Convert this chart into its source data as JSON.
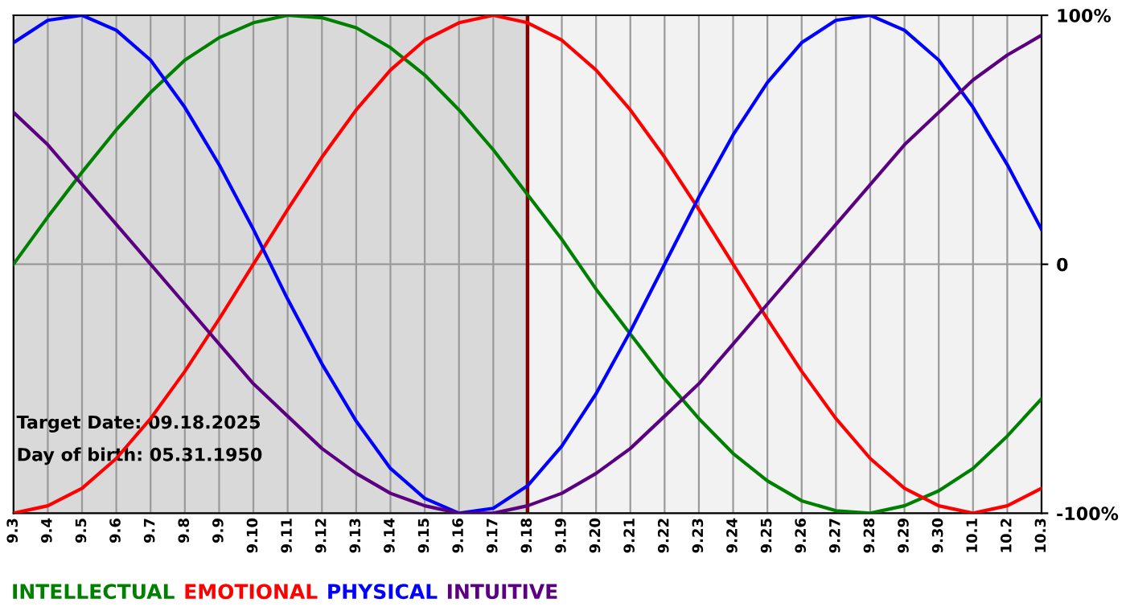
{
  "chart_data": {
    "type": "line",
    "categories": [
      "9.3",
      "9.4",
      "9.5",
      "9.6",
      "9.7",
      "9.8",
      "9.9",
      "9.10",
      "9.11",
      "9.12",
      "9.13",
      "9.14",
      "9.15",
      "9.16",
      "9.17",
      "9.18",
      "9.19",
      "9.20",
      "9.21",
      "9.22",
      "9.23",
      "9.24",
      "9.25",
      "9.26",
      "9.27",
      "9.28",
      "9.29",
      "9.30",
      "10.1",
      "10.2",
      "10.3"
    ],
    "series": [
      {
        "name": "INTELLECTUAL",
        "color": "#008000",
        "values": [
          0,
          19,
          37,
          54,
          69,
          82,
          91,
          97,
          100,
          99,
          95,
          87,
          76,
          62,
          46,
          28,
          10,
          -10,
          -28,
          -46,
          -62,
          -76,
          -87,
          -95,
          -99,
          -100,
          -97,
          -91,
          -82,
          -69,
          -54
        ]
      },
      {
        "name": "EMOTIONAL",
        "color": "#ff0000",
        "values": [
          -100,
          -97,
          -90,
          -78,
          -62,
          -43,
          -22,
          0,
          22,
          43,
          62,
          78,
          90,
          97,
          100,
          97,
          90,
          78,
          62,
          43,
          22,
          0,
          -22,
          -43,
          -62,
          -78,
          -90,
          -97,
          -100,
          -97,
          -90
        ]
      },
      {
        "name": "PHYSICAL",
        "color": "#0000ff",
        "values": [
          89,
          98,
          100,
          94,
          82,
          63,
          40,
          14,
          -14,
          -40,
          -63,
          -82,
          -94,
          -100,
          -98,
          -89,
          -73,
          -52,
          -27,
          0,
          27,
          52,
          73,
          89,
          98,
          100,
          94,
          82,
          63,
          40,
          14
        ]
      },
      {
        "name": "INTUITIVE",
        "color": "#5a0080",
        "values": [
          61,
          48,
          32,
          16,
          0,
          -16,
          -32,
          -48,
          -61,
          -74,
          -84,
          -92,
          -97,
          -100,
          -100,
          -97,
          -92,
          -84,
          -74,
          -61,
          -48,
          -32,
          -16,
          0,
          16,
          32,
          48,
          61,
          74,
          84,
          92
        ]
      }
    ],
    "ylim": [
      -100,
      100
    ],
    "yticks": [
      {
        "value": -100,
        "label": "-100%"
      },
      0,
      {
        "value": 100,
        "label": "100%"
      }
    ],
    "grid": true,
    "legend": "bottom",
    "bands": [
      {
        "axis": "x",
        "from": "9.3",
        "to": "9.18",
        "color": "#d9d9d9"
      }
    ],
    "ref_lines": [
      {
        "axis": "x",
        "value": "9.18",
        "color": "#800000"
      }
    ],
    "annotations": [
      "Target Date: 09.18.2025",
      "Day of birth: 05.31.1950"
    ]
  }
}
